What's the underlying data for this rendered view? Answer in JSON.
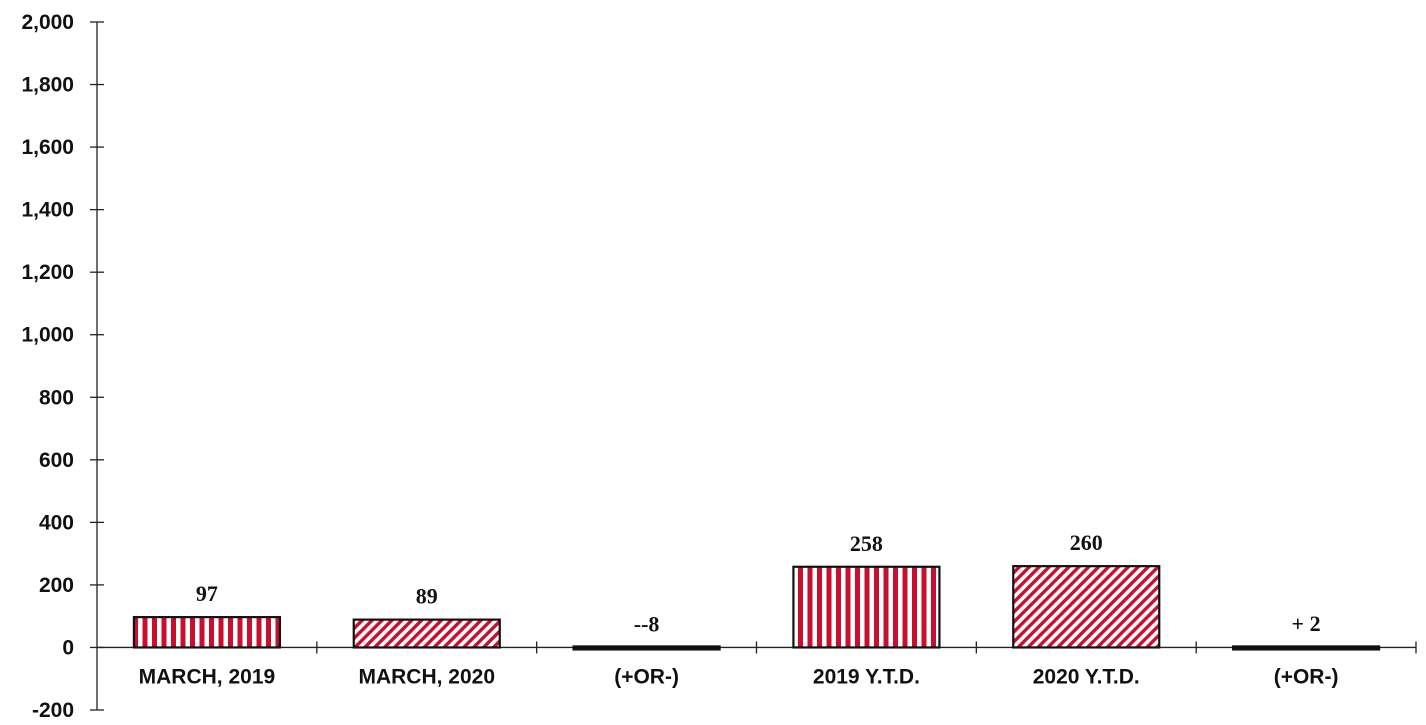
{
  "chart_data": {
    "type": "bar",
    "categories": [
      "MARCH, 2019",
      "MARCH, 2020",
      "(+OR-)",
      "2019 Y.T.D.",
      "2020 Y.T.D.",
      "(+OR-)"
    ],
    "values": [
      97,
      89,
      -8,
      258,
      260,
      2
    ],
    "data_labels": [
      "97",
      "89",
      "--8",
      "258",
      "260",
      "+ 2"
    ],
    "patterns": [
      "vertical-stripes",
      "diagonal-hatch",
      "solid",
      "vertical-stripes",
      "diagonal-hatch",
      "solid"
    ],
    "ylim": [
      -200,
      2000
    ],
    "yticks": [
      -200,
      0,
      200,
      400,
      600,
      800,
      1000,
      1200,
      1400,
      1600,
      1800,
      2000
    ],
    "ytick_labels": [
      "-200",
      "0",
      "200",
      "400",
      "600",
      "800",
      "1,000",
      "1,200",
      "1,400",
      "1,600",
      "1,800",
      "2,000"
    ],
    "grid": false,
    "legend": "none",
    "colors": {
      "accent": "#c8102e",
      "background": "#ffffff",
      "outline": "#111111"
    }
  }
}
